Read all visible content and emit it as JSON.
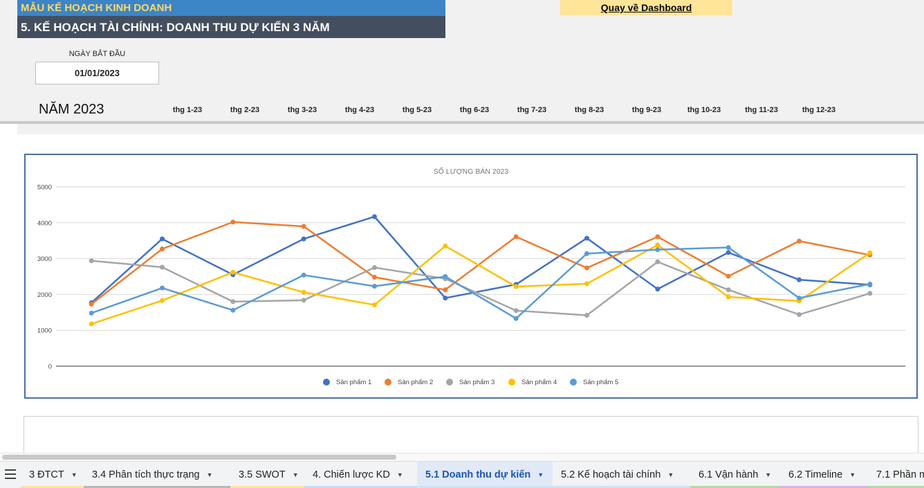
{
  "header": {
    "title_top": "MẪU KẾ HOẠCH KINH DOANH",
    "title_main": "5. KẾ HOẠCH TÀI CHÍNH: DOANH THU DỰ KIẾN 3 NĂM",
    "dashboard_link": "Quay về Dashboard"
  },
  "start": {
    "label": "NGÀY BẮT ĐẦU",
    "value": "01/01/2023"
  },
  "year_label": "NĂM 2023",
  "months": [
    "thg 1-23",
    "thg 2-23",
    "thg 3-23",
    "thg 4-23",
    "thg 5-23",
    "thg 6-23",
    "thg 7-23",
    "thg 8-23",
    "thg 9-23",
    "thg 10-23",
    "thg 11-23",
    "thg 12-23"
  ],
  "colors": {
    "title_bg": "#3d85c6",
    "title_text": "#ffd966",
    "subtitle_bg": "#434e5f",
    "dashboard_bg": "#ffe599",
    "chart_border": "#4a6fa5"
  },
  "chart_data": {
    "type": "line",
    "title": "SỐ LƯỢNG BÁN 2023",
    "xlabel": "",
    "ylabel": "",
    "ylim": [
      0,
      5000
    ],
    "yticks": [
      0,
      1000,
      2000,
      3000,
      4000,
      5000
    ],
    "grid": true,
    "legend_position": "bottom",
    "categories": [
      "thg 1-23",
      "thg 2-23",
      "thg 3-23",
      "thg 4-23",
      "thg 5-23",
      "thg 6-23",
      "thg 7-23",
      "thg 8-23",
      "thg 9-23",
      "thg 10-23",
      "thg 11-23",
      "thg 12-23"
    ],
    "series": [
      {
        "name": "Sản phẩm 1",
        "color": "#4472c4",
        "values": [
          1770,
          3550,
          2550,
          3550,
          4170,
          1900,
          2280,
          3570,
          2150,
          3170,
          2410,
          2270
        ]
      },
      {
        "name": "Sản phẩm 2",
        "color": "#ed7d31",
        "values": [
          1730,
          3270,
          4020,
          3900,
          2480,
          2130,
          3610,
          2740,
          3610,
          2510,
          3490,
          3100
        ]
      },
      {
        "name": "Sản phẩm 3",
        "color": "#a5a5a5",
        "values": [
          2940,
          2760,
          1800,
          1840,
          2750,
          2440,
          1550,
          1420,
          2910,
          2130,
          1440,
          2030
        ]
      },
      {
        "name": "Sản phẩm 4",
        "color": "#ffc000",
        "values": [
          1180,
          1830,
          2620,
          2060,
          1710,
          3350,
          2220,
          2300,
          3380,
          1930,
          1820,
          3160
        ]
      },
      {
        "name": "Sản phẩm 5",
        "color": "#5b9bd5",
        "values": [
          1480,
          2180,
          1560,
          2540,
          2230,
          2500,
          1330,
          3140,
          3250,
          3310,
          1900,
          2290
        ]
      }
    ]
  },
  "tabs": [
    {
      "label": "3 ĐTCT",
      "strip": "#ffe599",
      "active": false
    },
    {
      "label": "3.4 Phân tích thực trạng",
      "strip": "#b7b7b7",
      "active": false
    },
    {
      "label": "3.5 SWOT",
      "strip": "#ffe599",
      "active": false
    },
    {
      "label": "4. Chiến lược KD",
      "strip": "#c9daf8",
      "active": false
    },
    {
      "label": "5.1 Doanh thu dự kiến",
      "strip": "#cfe2f3",
      "active": true
    },
    {
      "label": "5.2 Kế hoạch tài chính",
      "strip": "#cfe2f3",
      "active": false
    },
    {
      "label": "6.1 Vận hành",
      "strip": "#b6d7a8",
      "active": false
    },
    {
      "label": "6.2 Timeline",
      "strip": "#d9b3e6",
      "active": false
    },
    {
      "label": "7.1 Phần m",
      "strip": "#b6d7a8",
      "active": false
    }
  ]
}
